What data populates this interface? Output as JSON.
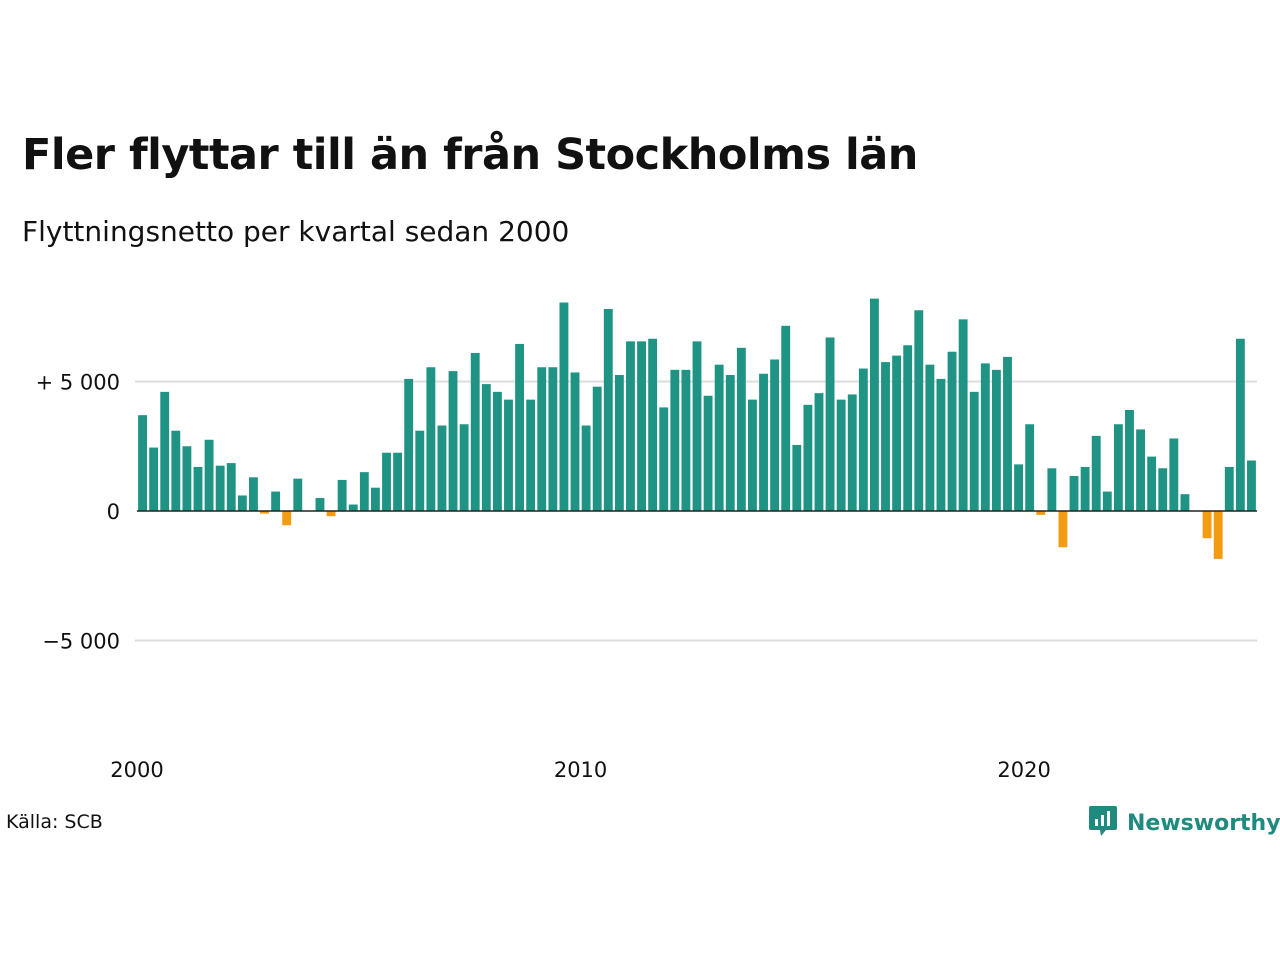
{
  "title": "Fler flyttar till än från Stockholms län",
  "subtitle": "Flyttningsnetto per kvartal sedan 2000",
  "source": "Källa: SCB",
  "brand": {
    "name": "Newsworthy",
    "icon": "newsworthy-logo-icon"
  },
  "colors": {
    "positive": "#1f9484",
    "negative": "#f39c12",
    "grid": "#dddddd",
    "zero_line": "#222222",
    "brand": "#1f8b7e"
  },
  "chart_data": {
    "type": "bar",
    "x_start": "2000-Q1",
    "frequency": "quarterly",
    "ylim": [
      -7500,
      8500
    ],
    "y_ticks": [
      {
        "value": 5000,
        "label": "+ 5 000"
      },
      {
        "value": 0,
        "label": "0"
      },
      {
        "value": -5000,
        "label": "−5 000"
      }
    ],
    "x_ticks": [
      {
        "label": "2000",
        "year": 2000
      },
      {
        "label": "2010",
        "year": 2010
      },
      {
        "label": "2020",
        "year": 2020
      }
    ],
    "gridlines": [
      5000,
      -5000
    ],
    "values": [
      3700,
      2450,
      4600,
      3100,
      2500,
      1700,
      2750,
      1750,
      1850,
      600,
      1300,
      -100,
      750,
      -550,
      1250,
      0,
      500,
      -200,
      1200,
      250,
      1500,
      900,
      2250,
      2250,
      5100,
      3100,
      5550,
      3300,
      5400,
      3350,
      6100,
      4900,
      4600,
      4300,
      6450,
      4300,
      5550,
      5550,
      8050,
      5350,
      3300,
      4800,
      7800,
      5250,
      6550,
      6550,
      6650,
      4000,
      5450,
      5450,
      6550,
      4450,
      5650,
      5250,
      6300,
      4300,
      5300,
      5850,
      7150,
      2550,
      4100,
      4550,
      6700,
      4300,
      4500,
      5500,
      8200,
      5750,
      6000,
      6400,
      7750,
      5650,
      5100,
      6150,
      7400,
      4600,
      5700,
      5450,
      5950,
      1800,
      3350,
      -150,
      1650,
      -1400,
      1350,
      1700,
      2900,
      750,
      3350,
      3900,
      3150,
      2100,
      1650,
      2800,
      650,
      0,
      -1050,
      -1850,
      1700,
      6650,
      1950
    ]
  }
}
